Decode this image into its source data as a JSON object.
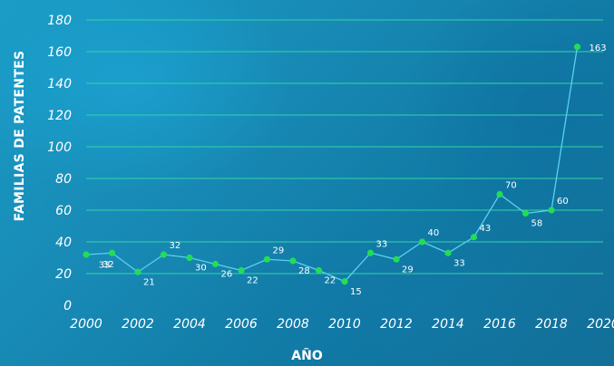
{
  "chart_data": {
    "type": "line",
    "xlabel": "AÑO",
    "ylabel": "FAMILIAS DE PATENTES",
    "xlim": [
      2000,
      2020
    ],
    "ylim": [
      0,
      180
    ],
    "x_ticks": [
      2000,
      2002,
      2004,
      2006,
      2008,
      2010,
      2012,
      2014,
      2016,
      2018,
      2020
    ],
    "y_ticks": [
      0,
      20,
      40,
      60,
      80,
      100,
      120,
      140,
      160,
      180
    ],
    "grid": "horizontal",
    "colors": {
      "line": "#5ad0ee",
      "marker": "#22dd55",
      "grid": "#2fd6a6",
      "text": "#ffffff"
    },
    "series": [
      {
        "x": [
          2000,
          2001,
          2002,
          2003,
          2004,
          2005,
          2006,
          2007,
          2008,
          2009,
          2010,
          2011,
          2012,
          2013,
          2014,
          2015,
          2016,
          2017,
          2018,
          2019
        ],
        "values": [
          32,
          33,
          21,
          32,
          30,
          26,
          22,
          29,
          28,
          22,
          15,
          33,
          29,
          40,
          33,
          43,
          70,
          58,
          60,
          163
        ]
      }
    ]
  }
}
